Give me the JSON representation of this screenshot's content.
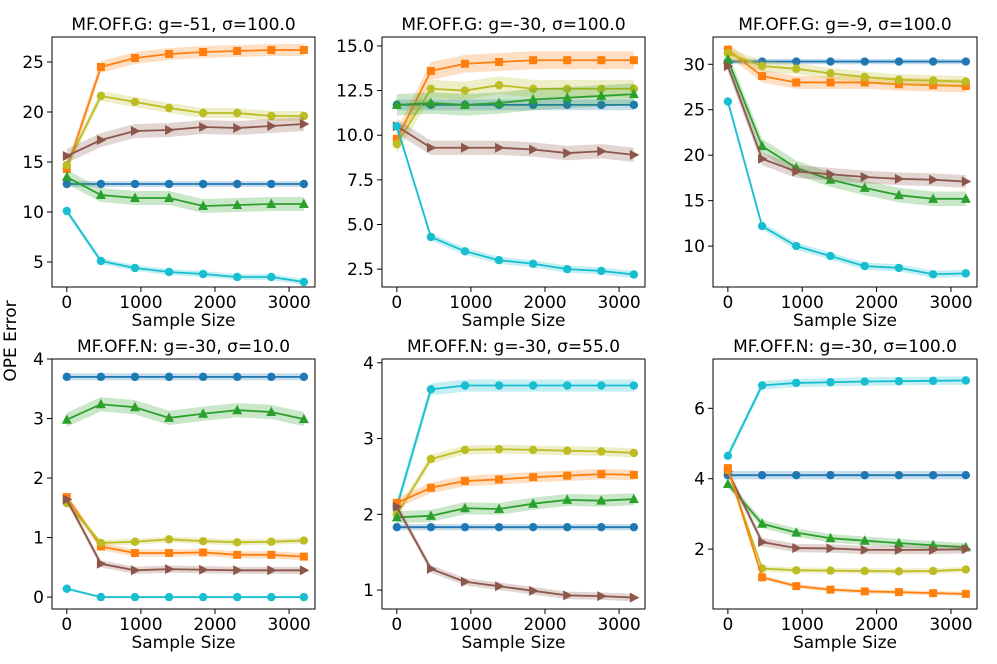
{
  "figure": {
    "ylabel": "OPE Error"
  },
  "colors": {
    "blue": "#1f77b4",
    "orange": "#ff7f0e",
    "green": "#2ca02c",
    "brown": "#8c564b",
    "olive": "#bcbd22",
    "cyan": "#17becf"
  },
  "chart_data": [
    {
      "type": "line",
      "title": "MF.OFF.G: g=-51, σ=100.0",
      "xlabel": "Sample Size",
      "ylabel": "",
      "xlim": [
        -200,
        3350
      ],
      "ylim": [
        2.5,
        27.5
      ],
      "xticks": [
        0,
        1000,
        2000,
        3000
      ],
      "yticks": [
        5,
        10,
        15,
        20,
        25
      ],
      "x": [
        0,
        460,
        920,
        1380,
        1840,
        2300,
        2760,
        3200
      ],
      "series": [
        {
          "name": "blue",
          "color": "#1f77b4",
          "marker": "circle",
          "values": [
            12.8,
            12.8,
            12.8,
            12.8,
            12.8,
            12.8,
            12.8,
            12.8
          ],
          "band": 0.3
        },
        {
          "name": "orange",
          "color": "#ff7f0e",
          "marker": "square",
          "values": [
            14.3,
            24.5,
            25.4,
            25.8,
            26.0,
            26.1,
            26.2,
            26.2
          ],
          "band": 0.6
        },
        {
          "name": "olive",
          "color": "#bcbd22",
          "marker": "circle",
          "values": [
            14.7,
            21.6,
            21.0,
            20.4,
            19.9,
            19.9,
            19.6,
            19.6
          ],
          "band": 0.5
        },
        {
          "name": "brown",
          "color": "#8c564b",
          "marker": "triangle-right",
          "values": [
            15.6,
            17.2,
            18.1,
            18.2,
            18.5,
            18.4,
            18.6,
            18.8
          ],
          "band": 0.7
        },
        {
          "name": "green",
          "color": "#2ca02c",
          "marker": "triangle-up",
          "values": [
            13.5,
            11.7,
            11.4,
            11.4,
            10.6,
            10.7,
            10.8,
            10.8
          ],
          "band": 0.7
        },
        {
          "name": "cyan",
          "color": "#17becf",
          "marker": "circle",
          "values": [
            10.1,
            5.1,
            4.4,
            4.0,
            3.8,
            3.5,
            3.5,
            3.0
          ],
          "band": 0.3
        }
      ]
    },
    {
      "type": "line",
      "title": "MF.OFF.G: g=-30, σ=100.0",
      "xlabel": "Sample Size",
      "ylabel": "",
      "xlim": [
        -200,
        3350
      ],
      "ylim": [
        1.5,
        15.5
      ],
      "xticks": [
        0,
        1000,
        2000,
        3000
      ],
      "yticks": [
        2.5,
        5.0,
        7.5,
        10.0,
        12.5,
        15.0
      ],
      "ytick_labels": [
        "2.5",
        "5.0",
        "7.5",
        "10.0",
        "12.5",
        "15.0"
      ],
      "x": [
        0,
        460,
        920,
        1380,
        1840,
        2300,
        2760,
        3200
      ],
      "series": [
        {
          "name": "blue",
          "color": "#1f77b4",
          "marker": "circle",
          "values": [
            11.7,
            11.7,
            11.7,
            11.7,
            11.7,
            11.7,
            11.7,
            11.7
          ],
          "band": 0.3
        },
        {
          "name": "orange",
          "color": "#ff7f0e",
          "marker": "square",
          "values": [
            9.8,
            13.6,
            14.0,
            14.1,
            14.2,
            14.2,
            14.2,
            14.2
          ],
          "band": 0.5
        },
        {
          "name": "olive",
          "color": "#bcbd22",
          "marker": "circle",
          "values": [
            9.5,
            12.6,
            12.5,
            12.8,
            12.6,
            12.6,
            12.6,
            12.6
          ],
          "band": 0.5
        },
        {
          "name": "green",
          "color": "#2ca02c",
          "marker": "triangle-up",
          "values": [
            11.7,
            11.8,
            11.7,
            11.8,
            12.0,
            12.1,
            12.2,
            12.3
          ],
          "band": 0.6
        },
        {
          "name": "brown",
          "color": "#8c564b",
          "marker": "triangle-right",
          "values": [
            10.5,
            9.3,
            9.3,
            9.3,
            9.2,
            9.0,
            9.1,
            8.9
          ],
          "band": 0.4
        },
        {
          "name": "cyan",
          "color": "#17becf",
          "marker": "circle",
          "values": [
            10.5,
            4.3,
            3.5,
            3.0,
            2.8,
            2.5,
            2.4,
            2.2
          ],
          "band": 0.2
        }
      ]
    },
    {
      "type": "line",
      "title": "MF.OFF.G: g=-9, σ=100.0",
      "xlabel": "Sample Size",
      "ylabel": "",
      "xlim": [
        -200,
        3350
      ],
      "ylim": [
        5.5,
        33.0
      ],
      "xticks": [
        0,
        1000,
        2000,
        3000
      ],
      "yticks": [
        10,
        15,
        20,
        25,
        30
      ],
      "x": [
        0,
        460,
        920,
        1380,
        1840,
        2300,
        2760,
        3200
      ],
      "series": [
        {
          "name": "blue",
          "color": "#1f77b4",
          "marker": "circle",
          "values": [
            30.3,
            30.3,
            30.3,
            30.3,
            30.3,
            30.3,
            30.3,
            30.3
          ],
          "band": 0.3
        },
        {
          "name": "orange",
          "color": "#ff7f0e",
          "marker": "square",
          "values": [
            31.6,
            28.7,
            28.0,
            28.0,
            28.0,
            27.8,
            27.7,
            27.6
          ],
          "band": 0.7
        },
        {
          "name": "olive",
          "color": "#bcbd22",
          "marker": "circle",
          "values": [
            31.2,
            29.8,
            29.5,
            29.0,
            28.6,
            28.3,
            28.2,
            28.1
          ],
          "band": 0.6
        },
        {
          "name": "green",
          "color": "#2ca02c",
          "marker": "triangle-up",
          "values": [
            30.5,
            21.0,
            18.6,
            17.3,
            16.4,
            15.6,
            15.2,
            15.2
          ],
          "band": 0.8
        },
        {
          "name": "brown",
          "color": "#8c564b",
          "marker": "triangle-right",
          "values": [
            29.8,
            19.6,
            18.2,
            17.9,
            17.6,
            17.4,
            17.3,
            17.1
          ],
          "band": 0.7
        },
        {
          "name": "cyan",
          "color": "#17becf",
          "marker": "circle",
          "values": [
            25.9,
            12.2,
            10.0,
            8.9,
            7.8,
            7.6,
            6.9,
            7.0
          ],
          "band": 0.4
        }
      ]
    },
    {
      "type": "line",
      "title": "MF.OFF.N: g=-30, σ=10.0",
      "xlabel": "Sample Size",
      "ylabel": "",
      "xlim": [
        -200,
        3350
      ],
      "ylim": [
        -0.2,
        4.0
      ],
      "xticks": [
        0,
        1000,
        2000,
        3000
      ],
      "yticks": [
        0,
        1,
        2,
        3,
        4
      ],
      "x": [
        0,
        460,
        920,
        1380,
        1840,
        2300,
        2760,
        3200
      ],
      "series": [
        {
          "name": "blue",
          "color": "#1f77b4",
          "marker": "circle",
          "values": [
            3.7,
            3.7,
            3.7,
            3.7,
            3.7,
            3.7,
            3.7,
            3.7
          ],
          "band": 0.06
        },
        {
          "name": "green",
          "color": "#2ca02c",
          "marker": "triangle-up",
          "values": [
            2.98,
            3.24,
            3.19,
            3.01,
            3.08,
            3.14,
            3.11,
            2.99
          ],
          "band": 0.12
        },
        {
          "name": "orange",
          "color": "#ff7f0e",
          "marker": "square",
          "values": [
            1.68,
            0.85,
            0.74,
            0.74,
            0.75,
            0.71,
            0.71,
            0.68
          ],
          "band": 0.06
        },
        {
          "name": "olive",
          "color": "#bcbd22",
          "marker": "circle",
          "values": [
            1.58,
            0.91,
            0.93,
            0.97,
            0.94,
            0.92,
            0.93,
            0.95
          ],
          "band": 0.05
        },
        {
          "name": "brown",
          "color": "#8c564b",
          "marker": "triangle-right",
          "values": [
            1.64,
            0.56,
            0.45,
            0.47,
            0.46,
            0.45,
            0.45,
            0.45
          ],
          "band": 0.06
        },
        {
          "name": "cyan",
          "color": "#17becf",
          "marker": "circle",
          "values": [
            0.14,
            0.0,
            0.0,
            0.0,
            0.0,
            0.0,
            0.0,
            0.0
          ],
          "band": 0.02
        }
      ]
    },
    {
      "type": "line",
      "title": "MF.OFF.N: g=-30, σ=55.0",
      "xlabel": "Sample Size",
      "ylabel": "",
      "xlim": [
        -200,
        3350
      ],
      "ylim": [
        0.75,
        4.05
      ],
      "xticks": [
        0,
        1000,
        2000,
        3000
      ],
      "yticks": [
        1,
        2,
        3,
        4
      ],
      "x": [
        0,
        460,
        920,
        1380,
        1840,
        2300,
        2760,
        3200
      ],
      "series": [
        {
          "name": "cyan",
          "color": "#17becf",
          "marker": "circle",
          "values": [
            2.1,
            3.65,
            3.7,
            3.7,
            3.7,
            3.7,
            3.7,
            3.7
          ],
          "band": 0.08
        },
        {
          "name": "olive",
          "color": "#bcbd22",
          "marker": "circle",
          "values": [
            2.0,
            2.73,
            2.85,
            2.86,
            2.85,
            2.84,
            2.83,
            2.81
          ],
          "band": 0.06
        },
        {
          "name": "orange",
          "color": "#ff7f0e",
          "marker": "square",
          "values": [
            2.15,
            2.35,
            2.44,
            2.46,
            2.49,
            2.51,
            2.53,
            2.52
          ],
          "band": 0.07
        },
        {
          "name": "green",
          "color": "#2ca02c",
          "marker": "triangle-up",
          "values": [
            1.96,
            1.98,
            2.08,
            2.07,
            2.14,
            2.19,
            2.18,
            2.2
          ],
          "band": 0.08
        },
        {
          "name": "blue",
          "color": "#1f77b4",
          "marker": "circle",
          "values": [
            1.83,
            1.83,
            1.83,
            1.83,
            1.83,
            1.83,
            1.83,
            1.83
          ],
          "band": 0.04
        },
        {
          "name": "brown",
          "color": "#8c564b",
          "marker": "triangle-right",
          "values": [
            2.1,
            1.28,
            1.11,
            1.05,
            0.99,
            0.93,
            0.92,
            0.9
          ],
          "band": 0.05
        }
      ]
    },
    {
      "type": "line",
      "title": "MF.OFF.N: g=-30, σ=100.0",
      "xlabel": "Sample Size",
      "ylabel": "",
      "xlim": [
        -200,
        3350
      ],
      "ylim": [
        0.3,
        7.4
      ],
      "xticks": [
        0,
        1000,
        2000,
        3000
      ],
      "yticks": [
        2,
        4,
        6
      ],
      "x": [
        0,
        460,
        920,
        1380,
        1840,
        2300,
        2760,
        3200
      ],
      "series": [
        {
          "name": "cyan",
          "color": "#17becf",
          "marker": "circle",
          "values": [
            4.65,
            6.65,
            6.72,
            6.74,
            6.76,
            6.77,
            6.78,
            6.79
          ],
          "band": 0.12
        },
        {
          "name": "blue",
          "color": "#1f77b4",
          "marker": "circle",
          "values": [
            4.1,
            4.1,
            4.1,
            4.1,
            4.1,
            4.1,
            4.1,
            4.1
          ],
          "band": 0.12
        },
        {
          "name": "green",
          "color": "#2ca02c",
          "marker": "triangle-up",
          "values": [
            3.85,
            2.72,
            2.47,
            2.31,
            2.24,
            2.17,
            2.11,
            2.05
          ],
          "band": 0.12
        },
        {
          "name": "brown",
          "color": "#8c564b",
          "marker": "triangle-right",
          "values": [
            4.2,
            2.2,
            2.03,
            2.02,
            1.98,
            1.98,
            1.98,
            2.0
          ],
          "band": 0.12
        },
        {
          "name": "olive",
          "color": "#bcbd22",
          "marker": "circle",
          "values": [
            4.25,
            1.45,
            1.4,
            1.39,
            1.38,
            1.37,
            1.38,
            1.42
          ],
          "band": 0.08
        },
        {
          "name": "orange",
          "color": "#ff7f0e",
          "marker": "square",
          "values": [
            4.3,
            1.2,
            0.95,
            0.85,
            0.8,
            0.78,
            0.75,
            0.73
          ],
          "band": 0.06
        }
      ]
    }
  ]
}
